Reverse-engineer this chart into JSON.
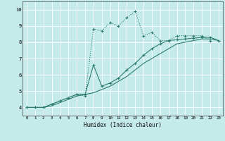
{
  "xlabel": "Humidex (Indice chaleur)",
  "background_color": "#c5eaea",
  "grid_color": "#ffffff",
  "line_color": "#2e7d6e",
  "xlim": [
    -0.5,
    23.5
  ],
  "ylim": [
    3.5,
    10.5
  ],
  "xticks": [
    0,
    1,
    2,
    3,
    4,
    5,
    6,
    7,
    8,
    9,
    10,
    11,
    12,
    13,
    14,
    15,
    16,
    17,
    18,
    19,
    20,
    21,
    22,
    23
  ],
  "yticks": [
    4,
    5,
    6,
    7,
    8,
    9,
    10
  ],
  "line1_x": [
    0,
    1,
    2,
    3,
    4,
    5,
    6,
    7,
    8,
    9,
    10,
    11,
    12,
    13,
    14,
    15,
    16,
    17,
    18,
    19,
    20,
    21,
    22,
    23
  ],
  "line1_y": [
    4.0,
    4.0,
    4.0,
    4.2,
    4.4,
    4.6,
    4.8,
    4.7,
    8.8,
    8.7,
    9.2,
    9.0,
    9.5,
    9.9,
    8.4,
    8.6,
    8.1,
    8.1,
    8.4,
    8.4,
    8.4,
    8.4,
    8.1,
    null
  ],
  "line2_x": [
    0,
    1,
    2,
    3,
    4,
    5,
    6,
    7,
    8,
    9,
    10,
    11,
    12,
    13,
    14,
    15,
    16,
    17,
    18,
    19,
    20,
    21,
    22,
    23
  ],
  "line2_y": [
    4.0,
    4.0,
    4.0,
    4.2,
    4.4,
    4.6,
    4.8,
    4.8,
    6.6,
    5.3,
    5.5,
    5.8,
    6.3,
    6.7,
    7.2,
    7.6,
    7.9,
    8.1,
    8.15,
    8.2,
    8.25,
    8.3,
    8.3,
    8.1
  ],
  "line3_x": [
    0,
    1,
    2,
    3,
    4,
    5,
    6,
    7,
    8,
    9,
    10,
    11,
    12,
    13,
    14,
    15,
    16,
    17,
    18,
    19,
    20,
    21,
    22,
    23
  ],
  "line3_y": [
    4.0,
    4.0,
    4.0,
    4.1,
    4.3,
    4.5,
    4.7,
    4.8,
    4.9,
    5.1,
    5.3,
    5.6,
    5.9,
    6.3,
    6.7,
    7.0,
    7.3,
    7.6,
    7.9,
    8.0,
    8.1,
    8.2,
    8.2,
    8.1
  ]
}
